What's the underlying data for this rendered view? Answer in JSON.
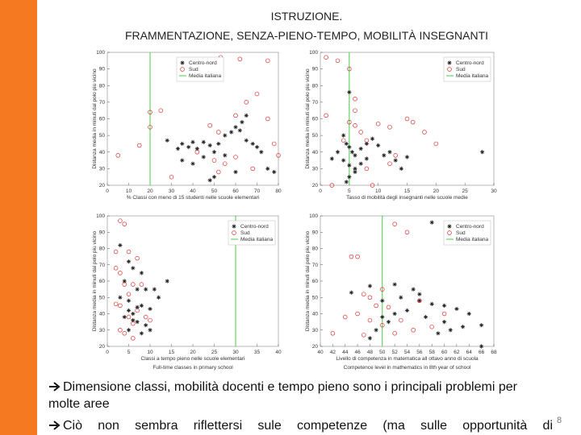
{
  "slide": {
    "title_line1": "ISTRUZIONE.",
    "title_line2": "FRAMMENTAZIONE, SENZA-PIENO-TEMPO, MOBILITÀ INSEGNANTI",
    "bullets": [
      "Dimensione classi, mobilità docenti e tempo pieno sono i principali problemi per molte aree",
      "Ciò non sembra riflettersi sule competenze (ma sulle opportunità di"
    ],
    "page_number": "8"
  },
  "chart_data": [
    {
      "type": "scatter",
      "x_label": "% Classi con meno di 15 studenti nelle scuole elementari",
      "y_label": "Distanza media in minuti dal polo più vicino",
      "xlim": [
        0,
        80
      ],
      "xticks": [
        0,
        10,
        20,
        30,
        40,
        50,
        60,
        70,
        80
      ],
      "ylim": [
        20,
        100
      ],
      "yticks": [
        20,
        30,
        40,
        50,
        60,
        70,
        80,
        90,
        100
      ],
      "legend": "upper center",
      "series": [
        {
          "name": "Centro-nord",
          "color": "#222222",
          "marker": "star",
          "x": [
            35,
            28,
            33,
            35,
            38,
            40,
            42,
            45,
            48,
            50,
            52,
            55,
            58,
            60,
            62,
            65,
            68,
            70,
            72,
            75,
            78,
            60,
            50,
            48,
            55,
            35,
            40,
            65,
            63,
            45
          ],
          "y": [
            85,
            47,
            42,
            45,
            43,
            46,
            42,
            46,
            44,
            40,
            45,
            50,
            52,
            55,
            53,
            47,
            45,
            43,
            40,
            30,
            28,
            28,
            25,
            23,
            38,
            35,
            33,
            62,
            58,
            37
          ]
        },
        {
          "name": "Sud",
          "color": "#e03030",
          "marker": "circle",
          "x": [
            53,
            62,
            75,
            20,
            25,
            20,
            15,
            5,
            48,
            52,
            60,
            65,
            70,
            75,
            78,
            80,
            60,
            42,
            50,
            55,
            30,
            52,
            68
          ],
          "y": [
            97,
            96,
            95,
            64,
            65,
            55,
            44,
            38,
            56,
            52,
            62,
            70,
            75,
            60,
            45,
            38,
            37,
            40,
            35,
            33,
            25,
            28,
            30
          ]
        }
      ],
      "reference_line": {
        "name": "Media italiana",
        "color": "#44cc44",
        "x": 20
      }
    },
    {
      "type": "scatter",
      "x_label": "Tasso di mobilità degli insegnanti nelle scuole medie",
      "y_label": "Distanza media in minuti dal polo più vicino",
      "xlim": [
        0,
        30
      ],
      "xticks": [
        0,
        5,
        10,
        15,
        20,
        25,
        30
      ],
      "ylim": [
        20,
        100
      ],
      "yticks": [
        20,
        30,
        40,
        50,
        60,
        70,
        80,
        90,
        100
      ],
      "legend": "upper right",
      "series": [
        {
          "name": "Centro-nord",
          "color": "#222222",
          "marker": "star",
          "x": [
            5,
            4,
            4.5,
            5,
            5.5,
            6,
            4,
            5,
            6,
            7,
            8,
            9,
            10,
            12,
            6,
            5,
            4.5,
            7,
            8,
            11,
            13,
            14,
            15,
            28,
            3,
            2
          ],
          "y": [
            76,
            50,
            45,
            43,
            40,
            38,
            35,
            32,
            30,
            42,
            45,
            48,
            44,
            40,
            28,
            25,
            22,
            33,
            36,
            38,
            35,
            30,
            37,
            40,
            40,
            36
          ]
        },
        {
          "name": "Sud",
          "color": "#e03030",
          "marker": "circle",
          "x": [
            1,
            3,
            5,
            6,
            1,
            5,
            6,
            7,
            8,
            4,
            10,
            12,
            15,
            16,
            18,
            20,
            12,
            13,
            8,
            9,
            2,
            6
          ],
          "y": [
            97,
            95,
            90,
            72,
            62,
            58,
            56,
            52,
            47,
            47,
            57,
            55,
            60,
            58,
            52,
            45,
            33,
            38,
            30,
            20,
            20,
            65
          ]
        }
      ],
      "reference_line": {
        "name": "Media italiana",
        "color": "#44cc44",
        "x": 5
      }
    },
    {
      "type": "scatter",
      "x_label": "Classi a tempo pieno nelle scuole elementari",
      "x_label_2": "Full-time classes in primary school",
      "y_label": "Distanza media in minuti dal polo più vicino",
      "xlim": [
        0,
        40
      ],
      "xticks": [
        0,
        5,
        10,
        15,
        20,
        25,
        30,
        35,
        40
      ],
      "ylim": [
        20,
        100
      ],
      "yticks": [
        20,
        30,
        40,
        50,
        60,
        70,
        80,
        90,
        100
      ],
      "legend": "upper right",
      "series": [
        {
          "name": "Centro-nord",
          "color": "#222222",
          "marker": "star",
          "x": [
            3,
            5,
            6,
            8,
            4,
            7,
            3,
            5,
            8,
            10,
            6,
            4,
            7,
            9,
            5,
            8,
            10,
            12,
            9,
            11,
            14,
            7,
            5,
            6
          ],
          "y": [
            82,
            72,
            68,
            65,
            60,
            55,
            50,
            48,
            45,
            43,
            40,
            38,
            35,
            33,
            30,
            28,
            30,
            50,
            55,
            55,
            60,
            44,
            42,
            36
          ]
        },
        {
          "name": "Sud",
          "color": "#e03030",
          "marker": "circle",
          "x": [
            3,
            4,
            2,
            5,
            7,
            2,
            3,
            4,
            6,
            8,
            2,
            3,
            5,
            6,
            7,
            9,
            4,
            6,
            10,
            5,
            3
          ],
          "y": [
            97,
            95,
            78,
            78,
            74,
            68,
            65,
            58,
            58,
            58,
            46,
            45,
            38,
            34,
            42,
            38,
            28,
            25,
            36,
            52,
            30
          ]
        }
      ],
      "reference_line": {
        "name": "Media italiana",
        "color": "#44cc44",
        "x": 30
      }
    },
    {
      "type": "scatter",
      "x_label": "Livello di competenza in matematica all ottavo anno di scuola",
      "x_label_2": "Competence level in mathematics in 8th year of school",
      "y_label": "Distanza media in minuti dal polo più vicino",
      "xlim": [
        40,
        68
      ],
      "xticks": [
        40,
        42,
        44,
        46,
        48,
        50,
        52,
        54,
        56,
        58,
        60,
        62,
        64,
        66,
        68
      ],
      "ylim": [
        20,
        100
      ],
      "yticks": [
        20,
        30,
        40,
        50,
        60,
        70,
        80,
        90,
        100
      ],
      "legend": "upper right",
      "series": [
        {
          "name": "Centro-nord",
          "color": "#222222",
          "marker": "star",
          "x": [
            58,
            48,
            52,
            55,
            45,
            50,
            53,
            56,
            58,
            60,
            62,
            64,
            54,
            52,
            50,
            57,
            60,
            63,
            66,
            61,
            59,
            49,
            51,
            56,
            48,
            66
          ],
          "y": [
            96,
            57,
            58,
            55,
            53,
            48,
            50,
            48,
            46,
            45,
            43,
            40,
            42,
            40,
            38,
            38,
            35,
            32,
            33,
            30,
            28,
            30,
            35,
            52,
            25,
            20
          ]
        },
        {
          "name": "Sud",
          "color": "#e03030",
          "marker": "circle",
          "x": [
            46,
            52,
            54,
            45,
            47,
            50,
            48,
            49,
            46,
            44,
            48,
            50,
            52,
            55,
            58,
            42,
            47,
            56,
            60,
            53,
            51
          ],
          "y": [
            75,
            95,
            90,
            75,
            52,
            55,
            50,
            45,
            40,
            38,
            36,
            33,
            28,
            30,
            32,
            28,
            27,
            48,
            40,
            36,
            44
          ]
        }
      ],
      "reference_line": {
        "name": "Media italiana",
        "color": "#44cc44",
        "x": 50
      }
    }
  ]
}
